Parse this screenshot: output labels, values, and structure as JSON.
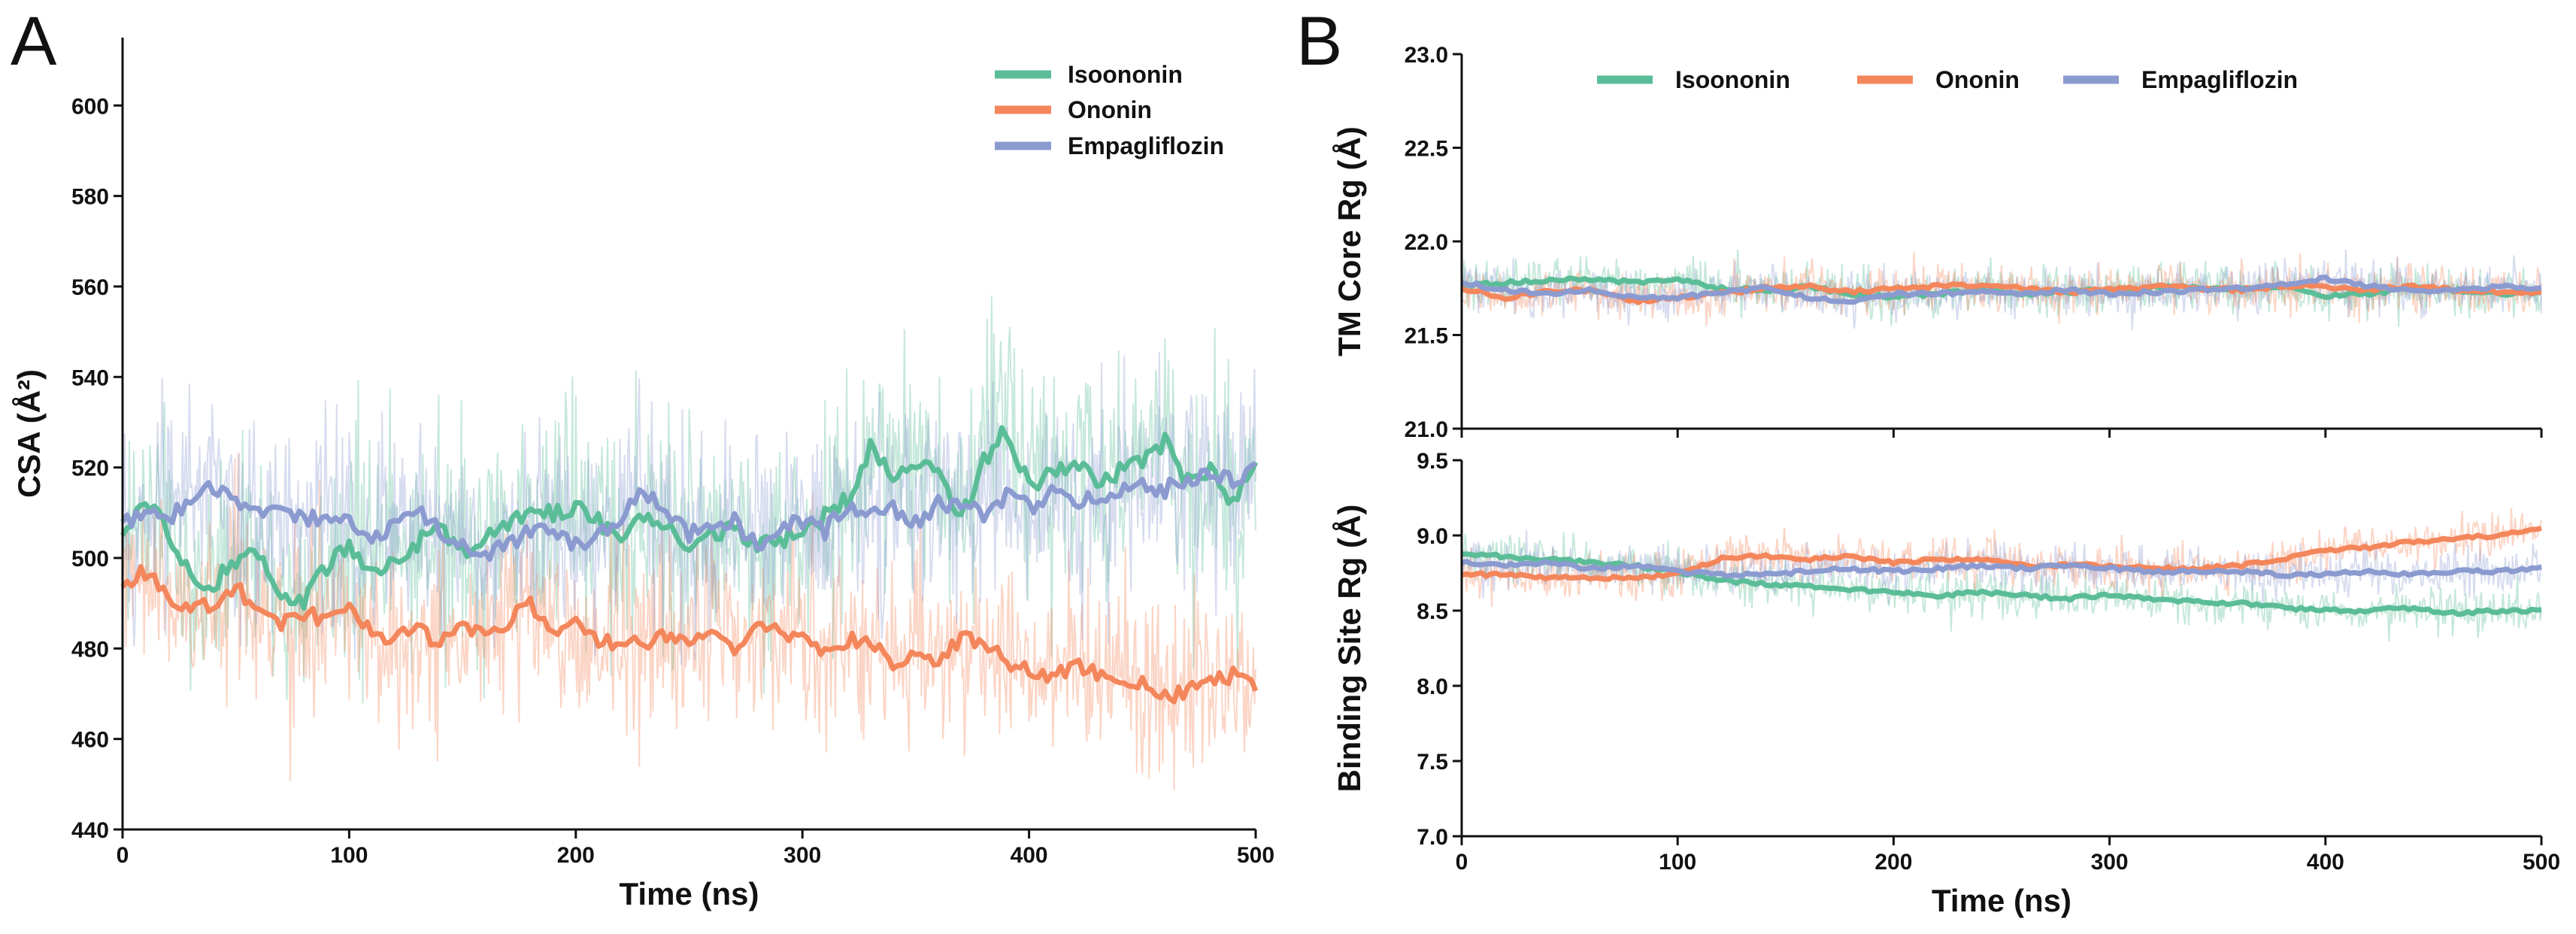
{
  "colors": {
    "isoononin": "#5bbd98",
    "ononin": "#f4865c",
    "empagliflozin": "#8b9bd0"
  },
  "chart_data": [
    {
      "panel": "A",
      "type": "line",
      "title": "",
      "xlabel": "Time (ns)",
      "ylabel": "CSA (Å²)",
      "xlim": [
        0,
        500
      ],
      "ylim": [
        440,
        615
      ],
      "xticks": [
        0,
        100,
        200,
        300,
        400,
        500
      ],
      "yticks": [
        440,
        460,
        480,
        500,
        520,
        540,
        560,
        580,
        600
      ],
      "legend": "top-right",
      "series": [
        {
          "name": "Isoononin",
          "color": "#5bbd98",
          "noise": 12,
          "x": [
            0,
            10,
            20,
            30,
            40,
            50,
            60,
            70,
            80,
            90,
            100,
            110,
            120,
            130,
            140,
            150,
            160,
            170,
            180,
            190,
            200,
            210,
            220,
            230,
            240,
            250,
            260,
            270,
            280,
            290,
            300,
            310,
            320,
            330,
            340,
            350,
            360,
            370,
            380,
            390,
            400,
            410,
            420,
            430,
            440,
            450,
            460,
            470,
            480,
            490,
            500
          ],
          "y": [
            506,
            512,
            506,
            496,
            494,
            500,
            501,
            492,
            490,
            498,
            502,
            497,
            500,
            503,
            507,
            502,
            504,
            507,
            511,
            510,
            512,
            508,
            505,
            510,
            506,
            503,
            505,
            507,
            502,
            504,
            505,
            509,
            513,
            524,
            518,
            522,
            520,
            508,
            522,
            528,
            516,
            518,
            521,
            516,
            519,
            522,
            526,
            517,
            519,
            512,
            523
          ]
        },
        {
          "name": "Ononin",
          "color": "#f4865c",
          "noise": 10,
          "x": [
            0,
            10,
            20,
            30,
            40,
            50,
            60,
            70,
            80,
            90,
            100,
            110,
            120,
            130,
            140,
            150,
            160,
            170,
            180,
            190,
            200,
            210,
            220,
            230,
            240,
            250,
            260,
            270,
            280,
            290,
            300,
            310,
            320,
            330,
            340,
            350,
            360,
            370,
            380,
            390,
            400,
            410,
            420,
            430,
            440,
            450,
            460,
            470,
            480,
            490,
            500
          ],
          "y": [
            494,
            497,
            492,
            488,
            490,
            494,
            487,
            485,
            488,
            486,
            489,
            483,
            482,
            484,
            481,
            485,
            483,
            486,
            490,
            484,
            486,
            481,
            482,
            480,
            483,
            482,
            485,
            480,
            486,
            484,
            482,
            480,
            482,
            481,
            477,
            479,
            476,
            483,
            481,
            477,
            475,
            473,
            477,
            474,
            474,
            472,
            469,
            471,
            473,
            474,
            471
          ]
        },
        {
          "name": "Empagliflozin",
          "color": "#8b9bd0",
          "noise": 11,
          "x": [
            0,
            10,
            20,
            30,
            40,
            50,
            60,
            70,
            80,
            90,
            100,
            110,
            120,
            130,
            140,
            150,
            160,
            170,
            180,
            190,
            200,
            210,
            220,
            230,
            240,
            250,
            260,
            270,
            280,
            290,
            300,
            310,
            320,
            330,
            340,
            350,
            360,
            370,
            380,
            390,
            400,
            410,
            420,
            430,
            440,
            450,
            460,
            470,
            480,
            490,
            500
          ],
          "y": [
            508,
            510,
            509,
            512,
            516,
            512,
            510,
            512,
            508,
            509,
            509,
            504,
            507,
            510,
            506,
            503,
            501,
            503,
            506,
            505,
            503,
            505,
            509,
            515,
            510,
            505,
            507,
            508,
            503,
            507,
            508,
            506,
            512,
            509,
            511,
            508,
            512,
            512,
            509,
            514,
            511,
            514,
            512,
            514,
            515,
            516,
            515,
            518,
            518,
            517,
            520
          ]
        }
      ]
    },
    {
      "panel": "B",
      "type": "line",
      "title": "",
      "xlabel": "",
      "ylabel": "TM Core Rg (Å)",
      "xlim": [
        0,
        500
      ],
      "ylim": [
        21.0,
        23.0
      ],
      "xticks": [
        0,
        100,
        200,
        300,
        400,
        500
      ],
      "yticks": [
        21.0,
        21.5,
        22.0,
        22.5,
        23.0
      ],
      "legend": "top",
      "series": [
        {
          "name": "Isoononin",
          "color": "#5bbd98",
          "noise": 0.06,
          "x": [
            0,
            20,
            40,
            60,
            80,
            100,
            120,
            140,
            160,
            180,
            200,
            220,
            240,
            260,
            280,
            300,
            320,
            340,
            360,
            380,
            400,
            420,
            440,
            460,
            480,
            500
          ],
          "y": [
            21.76,
            21.78,
            21.79,
            21.8,
            21.78,
            21.8,
            21.75,
            21.74,
            21.76,
            21.72,
            21.7,
            21.72,
            21.74,
            21.72,
            21.73,
            21.74,
            21.75,
            21.76,
            21.74,
            21.76,
            21.71,
            21.72,
            21.75,
            21.74,
            21.72,
            21.73
          ]
        },
        {
          "name": "Ononin",
          "color": "#f4865c",
          "noise": 0.06,
          "x": [
            0,
            20,
            40,
            60,
            80,
            100,
            120,
            140,
            160,
            180,
            200,
            220,
            240,
            260,
            280,
            300,
            320,
            340,
            360,
            380,
            400,
            420,
            440,
            460,
            480,
            500
          ],
          "y": [
            21.75,
            21.7,
            21.73,
            21.74,
            21.68,
            21.7,
            21.72,
            21.75,
            21.76,
            21.73,
            21.75,
            21.76,
            21.77,
            21.75,
            21.73,
            21.74,
            21.76,
            21.75,
            21.74,
            21.76,
            21.76,
            21.74,
            21.76,
            21.74,
            21.73,
            21.73
          ]
        },
        {
          "name": "Empagliflozin",
          "color": "#8b9bd0",
          "noise": 0.06,
          "x": [
            0,
            20,
            40,
            60,
            80,
            100,
            120,
            140,
            160,
            180,
            200,
            220,
            240,
            260,
            280,
            300,
            320,
            340,
            360,
            380,
            400,
            420,
            440,
            460,
            480,
            500
          ],
          "y": [
            21.78,
            21.74,
            21.72,
            21.74,
            21.7,
            21.7,
            21.73,
            21.75,
            21.7,
            21.68,
            21.72,
            21.72,
            21.73,
            21.72,
            21.74,
            21.72,
            21.73,
            21.74,
            21.75,
            21.77,
            21.8,
            21.76,
            21.74,
            21.74,
            21.76,
            21.75
          ]
        }
      ]
    },
    {
      "panel": "B",
      "type": "line",
      "title": "",
      "xlabel": "Time (ns)",
      "ylabel": "Binding Site Rg (Å)",
      "xlim": [
        0,
        500
      ],
      "ylim": [
        7.0,
        9.5
      ],
      "xticks": [
        0,
        100,
        200,
        300,
        400,
        500
      ],
      "yticks": [
        7.0,
        7.5,
        8.0,
        8.5,
        9.0,
        9.5
      ],
      "legend": "",
      "series": [
        {
          "name": "Isoononin",
          "color": "#5bbd98",
          "noise": 0.07,
          "x": [
            0,
            20,
            40,
            60,
            80,
            100,
            120,
            140,
            160,
            180,
            200,
            220,
            240,
            260,
            280,
            300,
            320,
            340,
            360,
            380,
            400,
            420,
            440,
            460,
            480,
            500
          ],
          "y": [
            8.88,
            8.86,
            8.84,
            8.82,
            8.8,
            8.76,
            8.7,
            8.68,
            8.66,
            8.64,
            8.62,
            8.6,
            8.62,
            8.6,
            8.58,
            8.6,
            8.58,
            8.56,
            8.55,
            8.52,
            8.5,
            8.5,
            8.52,
            8.48,
            8.5,
            8.5
          ]
        },
        {
          "name": "Ononin",
          "color": "#f4865c",
          "noise": 0.07,
          "x": [
            0,
            20,
            40,
            60,
            80,
            100,
            120,
            140,
            160,
            180,
            200,
            220,
            240,
            260,
            280,
            300,
            320,
            340,
            360,
            380,
            400,
            420,
            440,
            460,
            480,
            500
          ],
          "y": [
            8.74,
            8.74,
            8.72,
            8.72,
            8.72,
            8.74,
            8.85,
            8.86,
            8.84,
            8.86,
            8.82,
            8.84,
            8.84,
            8.8,
            8.8,
            8.8,
            8.78,
            8.78,
            8.8,
            8.84,
            8.9,
            8.92,
            8.96,
            8.98,
            9.0,
            9.04
          ]
        },
        {
          "name": "Empagliflozin",
          "color": "#8b9bd0",
          "noise": 0.07,
          "x": [
            0,
            20,
            40,
            60,
            80,
            100,
            120,
            140,
            160,
            180,
            200,
            220,
            240,
            260,
            280,
            300,
            320,
            340,
            360,
            380,
            400,
            420,
            440,
            460,
            480,
            500
          ],
          "y": [
            8.82,
            8.8,
            8.82,
            8.78,
            8.8,
            8.76,
            8.74,
            8.74,
            8.76,
            8.78,
            8.76,
            8.78,
            8.8,
            8.78,
            8.8,
            8.78,
            8.76,
            8.76,
            8.76,
            8.74,
            8.74,
            8.76,
            8.74,
            8.76,
            8.76,
            8.78
          ]
        }
      ]
    }
  ],
  "panels": {
    "A": {
      "label": "A",
      "legend": [
        "Isoononin",
        "Ononin",
        "Empagliflozin"
      ]
    },
    "B": {
      "label": "B",
      "legend": [
        "Isoononin",
        "Ononin",
        "Empagliflozin"
      ]
    }
  }
}
